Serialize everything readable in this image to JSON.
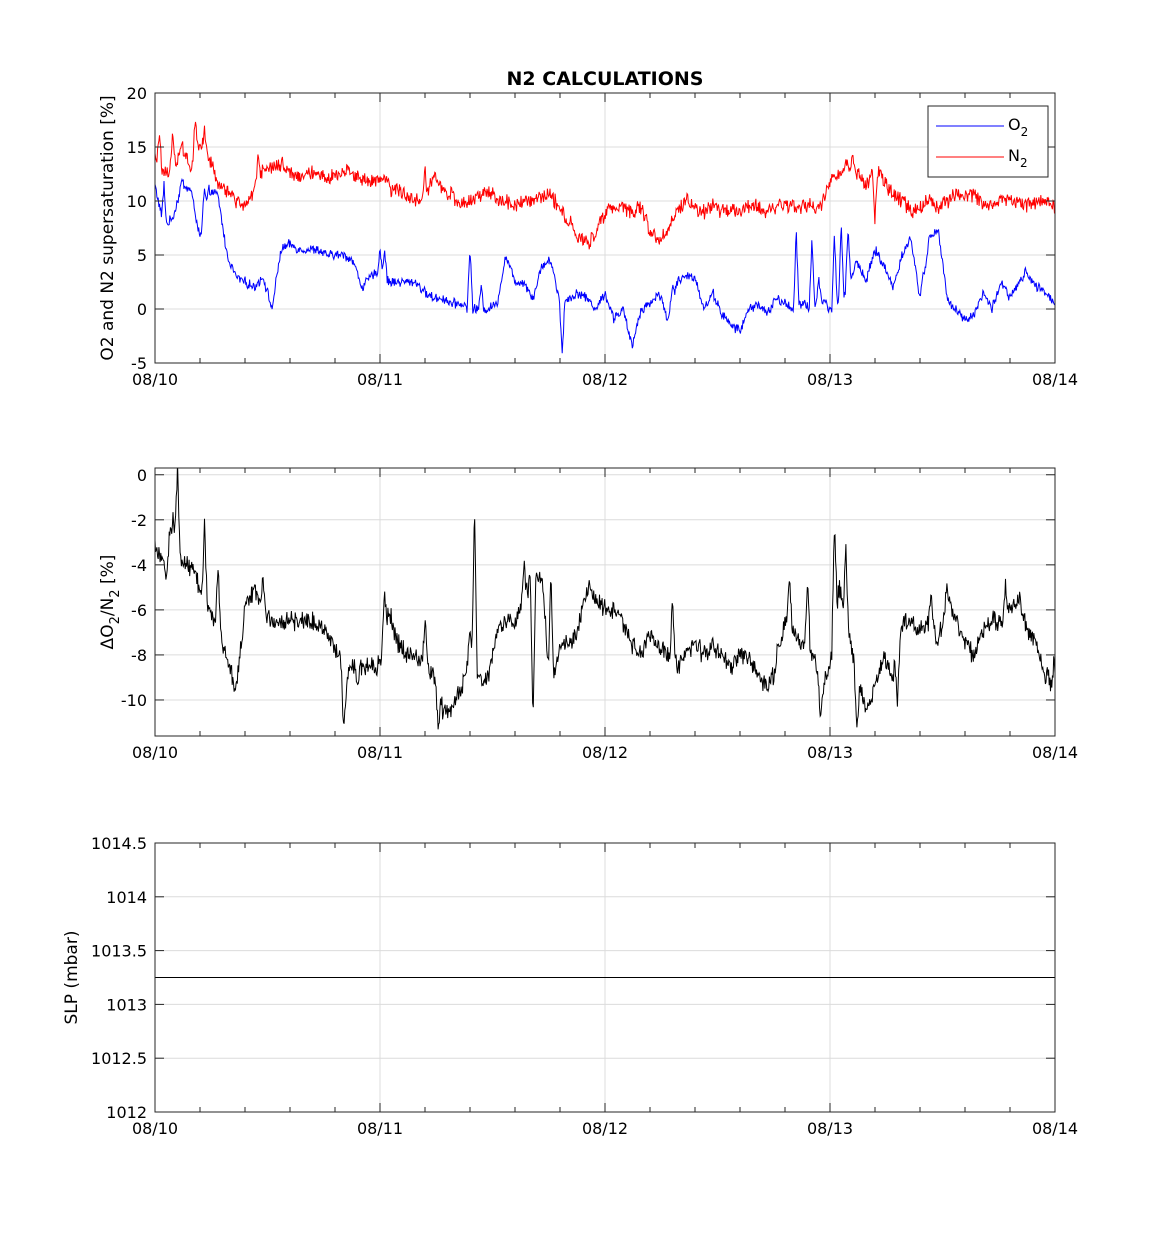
{
  "chart_data": [
    {
      "type": "line",
      "title": "N2 CALCULATIONS",
      "ylabel": "O2 and N2 supersaturation [%]",
      "xlabel": "",
      "xlim": [
        0,
        4
      ],
      "ylim": [
        -5,
        20
      ],
      "x_ticks": [
        0,
        1,
        2,
        3,
        4
      ],
      "x_tick_labels": [
        "08/10",
        "08/11",
        "08/12",
        "08/13",
        "08/14"
      ],
      "y_ticks": [
        -5,
        0,
        5,
        10,
        15,
        20
      ],
      "y_tick_labels": [
        "-5",
        "0",
        "5",
        "10",
        "15",
        "20"
      ],
      "grid": true,
      "legend": "top-right",
      "series": [
        {
          "name": "O2",
          "legend_label": "O",
          "legend_sub": "2",
          "color": "#0000ff",
          "noise": 0.35,
          "x": [
            0,
            0.04,
            0.08,
            0.12,
            0.16,
            0.2,
            0.24,
            0.28,
            0.32,
            0.36,
            0.4,
            0.44,
            0.48,
            0.52,
            0.56,
            0.6,
            0.64,
            0.68,
            0.72,
            0.76,
            0.8,
            0.84,
            0.88,
            0.92,
            0.96,
            1.0,
            1.04,
            1.08,
            1.12,
            1.16,
            1.2,
            1.24,
            1.28,
            1.32,
            1.36,
            1.4,
            1.44,
            1.48,
            1.52,
            1.56,
            1.6,
            1.64,
            1.68,
            1.72,
            1.76,
            1.8,
            1.84,
            1.88,
            1.92,
            1.96,
            2.0,
            2.04,
            2.08,
            2.12,
            2.16,
            2.2,
            2.24,
            2.28,
            2.32,
            2.36,
            2.4,
            2.44,
            2.48,
            2.52,
            2.56,
            2.6,
            2.64,
            2.68,
            2.72,
            2.76,
            2.8,
            2.84,
            2.88,
            2.92,
            2.96,
            3.0,
            3.04,
            3.08,
            3.12,
            3.16,
            3.2,
            3.24,
            3.28,
            3.32,
            3.36,
            3.4,
            3.44,
            3.48,
            3.52,
            3.56,
            3.6,
            3.64,
            3.68,
            3.72,
            3.76,
            3.8,
            3.84,
            3.88,
            3.92,
            3.96,
            4.0
          ],
          "y": [
            11.5,
            7.5,
            8.5,
            11.5,
            11.0,
            6.5,
            11.0,
            10.5,
            5.0,
            3.0,
            2.5,
            2.0,
            3.0,
            0.0,
            5.5,
            6.0,
            5.5,
            5.5,
            5.5,
            5.0,
            5.0,
            5.0,
            4.5,
            2.0,
            3.0,
            3.5,
            2.5,
            2.5,
            2.5,
            2.5,
            1.5,
            1.0,
            1.0,
            0.5,
            0.5,
            0.0,
            0.0,
            0.0,
            0.5,
            5.0,
            2.5,
            2.5,
            1.0,
            4.0,
            4.5,
            0.5,
            1.0,
            1.5,
            1.0,
            0.0,
            1.5,
            -1.0,
            0.0,
            -3.5,
            0.0,
            0.5,
            1.5,
            -1.0,
            2.5,
            3.0,
            3.0,
            0.0,
            1.5,
            -0.5,
            -1.5,
            -2.0,
            0.0,
            0.5,
            -0.5,
            1.0,
            0.5,
            0.0,
            0.5,
            0.0,
            1.0,
            0.0,
            0.5,
            2.0,
            4.5,
            2.5,
            5.5,
            4.0,
            2.0,
            5.0,
            6.5,
            1.0,
            6.5,
            7.5,
            1.0,
            0.0,
            -1.0,
            -0.5,
            1.5,
            0.0,
            2.5,
            1.0,
            2.5,
            3.0,
            2.0,
            1.5,
            0.5
          ],
          "spikes": [
            [
              0.04,
              11.5
            ],
            [
              0.12,
              11.8
            ],
            [
              0.22,
              11.0
            ],
            [
              1.0,
              5.5
            ],
            [
              1.02,
              5.5
            ],
            [
              1.4,
              5.8
            ],
            [
              1.45,
              2.0
            ],
            [
              1.72,
              4.0
            ],
            [
              1.81,
              -4.0
            ],
            [
              2.05,
              -0.5
            ],
            [
              2.3,
              2.2
            ],
            [
              2.85,
              7.2
            ],
            [
              2.92,
              6.7
            ],
            [
              2.95,
              2.8
            ],
            [
              3.02,
              7.0
            ],
            [
              3.05,
              8.0
            ],
            [
              3.08,
              7.5
            ],
            [
              3.42,
              3.5
            ],
            [
              3.87,
              3.5
            ]
          ]
        },
        {
          "name": "N2",
          "legend_label": "N",
          "legend_sub": "2",
          "color": "#ff0000",
          "noise": 0.55,
          "x": [
            0,
            0.04,
            0.08,
            0.12,
            0.16,
            0.2,
            0.24,
            0.28,
            0.32,
            0.36,
            0.4,
            0.44,
            0.48,
            0.52,
            0.56,
            0.6,
            0.64,
            0.68,
            0.72,
            0.76,
            0.8,
            0.84,
            0.88,
            0.92,
            0.96,
            1.0,
            1.04,
            1.08,
            1.12,
            1.16,
            1.2,
            1.24,
            1.28,
            1.32,
            1.36,
            1.4,
            1.44,
            1.48,
            1.52,
            1.56,
            1.6,
            1.64,
            1.68,
            1.72,
            1.76,
            1.8,
            1.84,
            1.88,
            1.92,
            1.96,
            2.0,
            2.04,
            2.08,
            2.12,
            2.16,
            2.2,
            2.24,
            2.28,
            2.32,
            2.36,
            2.4,
            2.44,
            2.48,
            2.52,
            2.56,
            2.6,
            2.64,
            2.68,
            2.72,
            2.76,
            2.8,
            2.84,
            2.88,
            2.92,
            2.96,
            3.0,
            3.04,
            3.08,
            3.12,
            3.16,
            3.2,
            3.24,
            3.28,
            3.32,
            3.36,
            3.4,
            3.44,
            3.48,
            3.52,
            3.56,
            3.6,
            3.64,
            3.68,
            3.72,
            3.76,
            3.8,
            3.84,
            3.88,
            3.92,
            3.96,
            4.0
          ],
          "y": [
            14.0,
            12.5,
            13.0,
            15.0,
            13.0,
            15.5,
            14.0,
            11.5,
            11.0,
            10.0,
            9.5,
            11.0,
            13.0,
            13.0,
            13.5,
            12.5,
            12.5,
            12.5,
            12.5,
            12.0,
            12.5,
            12.5,
            12.5,
            12.0,
            12.0,
            12.0,
            12.0,
            11.0,
            10.5,
            10.0,
            10.0,
            12.5,
            11.0,
            10.5,
            9.5,
            10.0,
            10.5,
            11.0,
            10.0,
            10.0,
            9.5,
            10.0,
            10.0,
            10.5,
            10.5,
            9.5,
            7.5,
            6.5,
            6.0,
            7.0,
            9.0,
            9.5,
            9.5,
            9.0,
            9.5,
            7.0,
            6.5,
            7.5,
            9.0,
            10.0,
            9.5,
            9.0,
            9.5,
            9.0,
            9.0,
            9.0,
            9.5,
            9.5,
            9.0,
            9.5,
            9.5,
            9.5,
            9.5,
            9.5,
            9.5,
            12.0,
            12.5,
            13.5,
            12.5,
            11.5,
            13.0,
            12.0,
            10.5,
            10.0,
            9.0,
            9.5,
            10.0,
            9.5,
            10.0,
            10.5,
            10.5,
            10.5,
            10.0,
            9.5,
            10.5,
            10.0,
            10.0,
            9.5,
            10.0,
            10.0,
            9.5
          ],
          "spikes": [
            [
              0.02,
              16.0
            ],
            [
              0.08,
              16.5
            ],
            [
              0.18,
              17.5
            ],
            [
              0.22,
              16.5
            ],
            [
              0.46,
              14.0
            ],
            [
              0.86,
              13.5
            ],
            [
              1.05,
              10.5
            ],
            [
              1.2,
              13.0
            ],
            [
              1.85,
              8.5
            ],
            [
              2.18,
              8.5
            ],
            [
              3.1,
              14.0
            ],
            [
              3.2,
              8.0
            ]
          ]
        }
      ]
    },
    {
      "type": "line",
      "title": "",
      "ylabel_parts": [
        "ΔO",
        "2",
        "/N",
        "2",
        " [%]"
      ],
      "xlabel": "",
      "xlim": [
        0,
        4
      ],
      "ylim": [
        -11.6,
        0.3
      ],
      "x_ticks": [
        0,
        1,
        2,
        3,
        4
      ],
      "x_tick_labels": [
        "08/10",
        "08/11",
        "08/12",
        "08/13",
        "08/14"
      ],
      "y_ticks": [
        -10,
        -8,
        -6,
        -4,
        -2,
        0
      ],
      "y_tick_labels": [
        "-10",
        "-8",
        "-6",
        "-4",
        "-2",
        "0"
      ],
      "grid": true,
      "series": [
        {
          "name": "",
          "color": "#000000",
          "noise": 0.35,
          "x": [
            0,
            0.04,
            0.08,
            0.12,
            0.16,
            0.2,
            0.24,
            0.28,
            0.32,
            0.36,
            0.4,
            0.44,
            0.48,
            0.52,
            0.56,
            0.6,
            0.64,
            0.68,
            0.72,
            0.76,
            0.8,
            0.84,
            0.88,
            0.92,
            0.96,
            1.0,
            1.04,
            1.08,
            1.12,
            1.16,
            1.2,
            1.24,
            1.28,
            1.32,
            1.36,
            1.4,
            1.44,
            1.48,
            1.52,
            1.56,
            1.6,
            1.64,
            1.68,
            1.72,
            1.76,
            1.8,
            1.84,
            1.88,
            1.92,
            1.96,
            2.0,
            2.04,
            2.08,
            2.12,
            2.16,
            2.2,
            2.24,
            2.28,
            2.32,
            2.36,
            2.4,
            2.44,
            2.48,
            2.52,
            2.56,
            2.6,
            2.64,
            2.68,
            2.72,
            2.76,
            2.8,
            2.84,
            2.88,
            2.92,
            2.96,
            3.0,
            3.04,
            3.08,
            3.12,
            3.16,
            3.2,
            3.24,
            3.28,
            3.32,
            3.36,
            3.4,
            3.44,
            3.48,
            3.52,
            3.56,
            3.6,
            3.64,
            3.68,
            3.72,
            3.76,
            3.8,
            3.84,
            3.88,
            3.92,
            3.96,
            4.0
          ],
          "y": [
            -3.0,
            -4.0,
            -2.0,
            -4.0,
            -4.0,
            -5.0,
            -6.0,
            -7.0,
            -8.0,
            -9.5,
            -6.0,
            -5.0,
            -6.0,
            -6.5,
            -6.5,
            -6.5,
            -6.5,
            -6.5,
            -6.5,
            -7.0,
            -7.5,
            -9.0,
            -8.5,
            -8.5,
            -8.5,
            -8.5,
            -6.0,
            -7.5,
            -8.0,
            -8.0,
            -8.5,
            -9.0,
            -10.5,
            -10.5,
            -9.5,
            -8.0,
            -9.0,
            -9.0,
            -7.0,
            -6.5,
            -6.5,
            -5.5,
            -4.5,
            -4.5,
            -10.0,
            -7.5,
            -7.5,
            -7.0,
            -5.0,
            -5.5,
            -6.0,
            -6.0,
            -6.5,
            -7.5,
            -8.0,
            -7.0,
            -7.5,
            -8.0,
            -8.5,
            -8.0,
            -7.5,
            -8.0,
            -7.5,
            -8.0,
            -8.5,
            -8.0,
            -8.0,
            -9.0,
            -9.5,
            -8.0,
            -6.5,
            -7.0,
            -7.5,
            -8.0,
            -9.5,
            -8.5,
            -5.0,
            -7.0,
            -9.0,
            -10.5,
            -9.5,
            -8.0,
            -9.0,
            -6.5,
            -6.5,
            -7.0,
            -6.5,
            -7.5,
            -5.5,
            -6.5,
            -7.5,
            -8.0,
            -7.0,
            -6.5,
            -6.5,
            -6.0,
            -5.5,
            -7.0,
            -7.5,
            -9.0,
            -8.5
          ],
          "spikes": [
            [
              0.1,
              0.2
            ],
            [
              0.05,
              -4.5
            ],
            [
              0.22,
              -2.2
            ],
            [
              0.28,
              -4.0
            ],
            [
              0.48,
              -4.5
            ],
            [
              0.84,
              -11.5
            ],
            [
              0.9,
              -9.5
            ],
            [
              1.02,
              -5.0
            ],
            [
              1.2,
              -6.5
            ],
            [
              1.26,
              -11.3
            ],
            [
              1.4,
              -7.0
            ],
            [
              1.42,
              -1.6
            ],
            [
              1.64,
              -3.8
            ],
            [
              1.68,
              -11.0
            ],
            [
              1.76,
              -4.0
            ],
            [
              2.3,
              -5.5
            ],
            [
              2.75,
              -9.0
            ],
            [
              2.82,
              -4.5
            ],
            [
              2.9,
              -4.5
            ],
            [
              2.93,
              -8.0
            ],
            [
              2.96,
              -11.0
            ],
            [
              3.02,
              -2.2
            ],
            [
              3.07,
              -2.8
            ],
            [
              3.12,
              -11.2
            ],
            [
              3.3,
              -10.0
            ],
            [
              3.45,
              -5.0
            ],
            [
              3.52,
              -5.0
            ],
            [
              3.78,
              -5.0
            ],
            [
              3.98,
              -9.5
            ]
          ]
        }
      ]
    },
    {
      "type": "line",
      "title": "",
      "ylabel": "SLP (mbar)",
      "xlabel": "",
      "xlim": [
        0,
        4
      ],
      "ylim": [
        1012,
        1014.5
      ],
      "x_ticks": [
        0,
        1,
        2,
        3,
        4
      ],
      "x_tick_labels": [
        "08/10",
        "08/11",
        "08/12",
        "08/13",
        "08/14"
      ],
      "y_ticks": [
        1012,
        1012.5,
        1013,
        1013.5,
        1014,
        1014.5
      ],
      "y_tick_labels": [
        "1012",
        "1012.5",
        "1013",
        "1013.5",
        "1014",
        "1014.5"
      ],
      "grid": true,
      "series": [
        {
          "name": "",
          "color": "#000000",
          "noise": 0,
          "x": [
            0,
            4
          ],
          "y": [
            1013.25,
            1013.25
          ],
          "spikes": []
        }
      ]
    }
  ]
}
